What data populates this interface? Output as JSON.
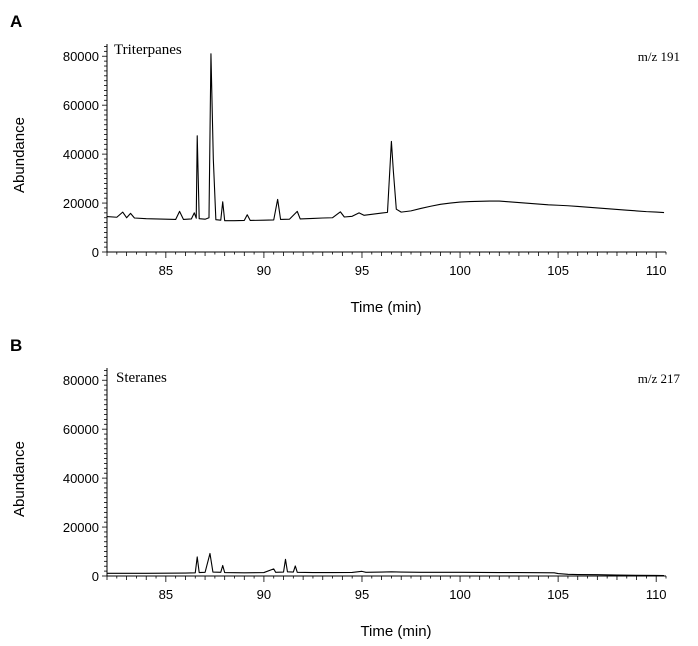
{
  "chart_data": [
    {
      "type": "line",
      "panel_label": "A",
      "title": "Triterpanes",
      "annotation": "m/z 191",
      "xlabel": "Time (min)",
      "ylabel": "Abundance",
      "xlim": [
        82,
        110.5
      ],
      "ylim": [
        0,
        85000
      ],
      "xticks": [
        85,
        90,
        95,
        100,
        105,
        110
      ],
      "yticks": [
        0,
        20000,
        40000,
        60000,
        80000
      ],
      "grid": false,
      "series": [
        {
          "values": [
            [
              82.0,
              14500
            ],
            [
              82.5,
              14200
            ],
            [
              82.8,
              16300
            ],
            [
              83.0,
              14000
            ],
            [
              83.2,
              15800
            ],
            [
              83.4,
              13900
            ],
            [
              84.0,
              13600
            ],
            [
              84.5,
              13500
            ],
            [
              85.0,
              13400
            ],
            [
              85.5,
              13300
            ],
            [
              85.7,
              16600
            ],
            [
              85.9,
              13300
            ],
            [
              86.3,
              13500
            ],
            [
              86.45,
              16000
            ],
            [
              86.55,
              13800
            ],
            [
              86.6,
              47500
            ],
            [
              86.7,
              13600
            ],
            [
              87.0,
              13400
            ],
            [
              87.2,
              14000
            ],
            [
              87.3,
              81000
            ],
            [
              87.42,
              38000
            ],
            [
              87.55,
              13200
            ],
            [
              87.8,
              13000
            ],
            [
              87.9,
              20500
            ],
            [
              88.0,
              12800
            ],
            [
              88.5,
              12800
            ],
            [
              89.0,
              12900
            ],
            [
              89.15,
              15200
            ],
            [
              89.3,
              12900
            ],
            [
              90.0,
              13000
            ],
            [
              90.5,
              13100
            ],
            [
              90.7,
              21500
            ],
            [
              90.85,
              13300
            ],
            [
              91.3,
              13400
            ],
            [
              91.7,
              16600
            ],
            [
              91.85,
              13500
            ],
            [
              92.5,
              13700
            ],
            [
              93.0,
              13900
            ],
            [
              93.5,
              14000
            ],
            [
              93.9,
              16400
            ],
            [
              94.1,
              14300
            ],
            [
              94.5,
              14600
            ],
            [
              94.85,
              16000
            ],
            [
              95.1,
              15000
            ],
            [
              95.5,
              15400
            ],
            [
              96.0,
              15900
            ],
            [
              96.3,
              16200
            ],
            [
              96.5,
              45200
            ],
            [
              96.6,
              33000
            ],
            [
              96.75,
              17500
            ],
            [
              97.0,
              16300
            ],
            [
              97.5,
              16800
            ],
            [
              98.0,
              17800
            ],
            [
              98.5,
              18700
            ],
            [
              99.0,
              19500
            ],
            [
              99.5,
              20000
            ],
            [
              100.0,
              20400
            ],
            [
              100.5,
              20600
            ],
            [
              101.0,
              20700
            ],
            [
              101.5,
              20800
            ],
            [
              102.0,
              20800
            ],
            [
              102.5,
              20500
            ],
            [
              103.0,
              20200
            ],
            [
              103.5,
              19900
            ],
            [
              104.0,
              19600
            ],
            [
              104.5,
              19300
            ],
            [
              105.0,
              19100
            ],
            [
              105.5,
              18900
            ],
            [
              106.0,
              18600
            ],
            [
              106.5,
              18300
            ],
            [
              107.0,
              18000
            ],
            [
              107.5,
              17700
            ],
            [
              108.0,
              17400
            ],
            [
              108.5,
              17100
            ],
            [
              109.0,
              16800
            ],
            [
              109.5,
              16500
            ],
            [
              110.0,
              16300
            ],
            [
              110.4,
              16100
            ]
          ]
        }
      ]
    },
    {
      "type": "line",
      "panel_label": "B",
      "title": "Steranes",
      "annotation": "m/z 217",
      "xlabel": "Time (min)",
      "ylabel": "Abundance",
      "xlim": [
        82,
        110.5
      ],
      "ylim": [
        0,
        85000
      ],
      "xticks": [
        85,
        90,
        95,
        100,
        105,
        110
      ],
      "yticks": [
        0,
        20000,
        40000,
        60000,
        80000
      ],
      "grid": false,
      "series": [
        {
          "values": [
            [
              82.0,
              1100
            ],
            [
              83.0,
              1100
            ],
            [
              84.0,
              1100
            ],
            [
              85.0,
              1150
            ],
            [
              86.0,
              1200
            ],
            [
              86.5,
              1300
            ],
            [
              86.6,
              7800
            ],
            [
              86.7,
              1400
            ],
            [
              87.0,
              1500
            ],
            [
              87.25,
              9200
            ],
            [
              87.4,
              1600
            ],
            [
              87.8,
              1500
            ],
            [
              87.9,
              4300
            ],
            [
              88.0,
              1400
            ],
            [
              89.0,
              1300
            ],
            [
              90.0,
              1400
            ],
            [
              90.5,
              2900
            ],
            [
              90.6,
              1500
            ],
            [
              91.0,
              1600
            ],
            [
              91.1,
              6800
            ],
            [
              91.2,
              1700
            ],
            [
              91.5,
              1600
            ],
            [
              91.6,
              4100
            ],
            [
              91.7,
              1500
            ],
            [
              92.5,
              1400
            ],
            [
              93.5,
              1400
            ],
            [
              94.5,
              1450
            ],
            [
              95.0,
              1900
            ],
            [
              95.2,
              1500
            ],
            [
              96.0,
              1600
            ],
            [
              96.5,
              1700
            ],
            [
              97.0,
              1600
            ],
            [
              98.0,
              1500
            ],
            [
              99.0,
              1500
            ],
            [
              100.0,
              1500
            ],
            [
              101.0,
              1450
            ],
            [
              102.0,
              1400
            ],
            [
              103.0,
              1400
            ],
            [
              104.0,
              1350
            ],
            [
              104.8,
              1300
            ],
            [
              105.0,
              1000
            ],
            [
              105.5,
              700
            ],
            [
              106.0,
              600
            ],
            [
              107.0,
              550
            ],
            [
              108.0,
              400
            ],
            [
              109.0,
              300
            ],
            [
              110.0,
              250
            ],
            [
              110.4,
              200
            ]
          ]
        }
      ]
    }
  ]
}
